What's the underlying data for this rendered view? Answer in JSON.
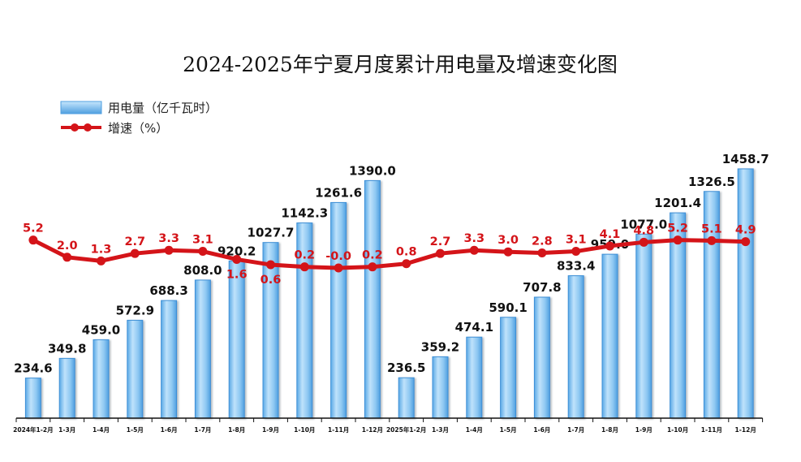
{
  "chart_data": {
    "type": "bar+line",
    "title": "2024-2025年宁夏月度累计用电量及增速变化图",
    "categories": [
      "2024年1-2月",
      "1-3月",
      "1-4月",
      "1-5月",
      "1-6月",
      "1-7月",
      "1-8月",
      "1-9月",
      "1-10月",
      "1-11月",
      "1-12月",
      "2025年1-2月",
      "1-3月",
      "1-4月",
      "1-5月",
      "1-6月",
      "1-7月",
      "1-8月",
      "1-9月",
      "1-10月",
      "1-11月",
      "1-12月"
    ],
    "series": [
      {
        "name": "用电量（亿千瓦时）",
        "type": "bar",
        "values": [
          234.6,
          349.8,
          459.0,
          572.9,
          688.3,
          808.0,
          920.2,
          1027.7,
          1142.3,
          1261.6,
          1390.0,
          236.5,
          359.2,
          474.1,
          590.1,
          707.8,
          833.4,
          959.0,
          1077.0,
          1201.4,
          1326.5,
          1458.7
        ],
        "labels": [
          "234.6",
          "349.8",
          "459.0",
          "572.9",
          "688.3",
          "808.0",
          "920.2",
          "1027.7",
          "1142.3",
          "1261.6",
          "1390.0",
          "236.5",
          "359.2",
          "474.1",
          "590.1",
          "707.8",
          "833.4",
          "959.0",
          "1077.0",
          "1201.4",
          "1326.5",
          "1458.7"
        ],
        "color": "#8cc8f0"
      },
      {
        "name": "增速（%）",
        "type": "line",
        "values": [
          5.2,
          2.0,
          1.3,
          2.7,
          3.3,
          3.1,
          1.6,
          0.6,
          0.2,
          -0.0,
          0.2,
          0.8,
          2.7,
          3.3,
          3.0,
          2.8,
          3.1,
          4.1,
          4.8,
          5.2,
          5.1,
          4.9
        ],
        "labels": [
          "5.2",
          "2.0",
          "1.3",
          "2.7",
          "3.3",
          "3.1",
          "1.6",
          "0.6",
          "0.2",
          "-0.0",
          "0.2",
          "0.8",
          "2.7",
          "3.3",
          "3.0",
          "2.8",
          "3.1",
          "4.1",
          "4.8",
          "5.2",
          "5.1",
          "4.9"
        ],
        "color": "#d41419"
      }
    ],
    "xlabel": "",
    "ylabel": "",
    "legend": [
      "用电量（亿千瓦时）",
      "增速（%）"
    ],
    "legend_position": "top-left"
  }
}
